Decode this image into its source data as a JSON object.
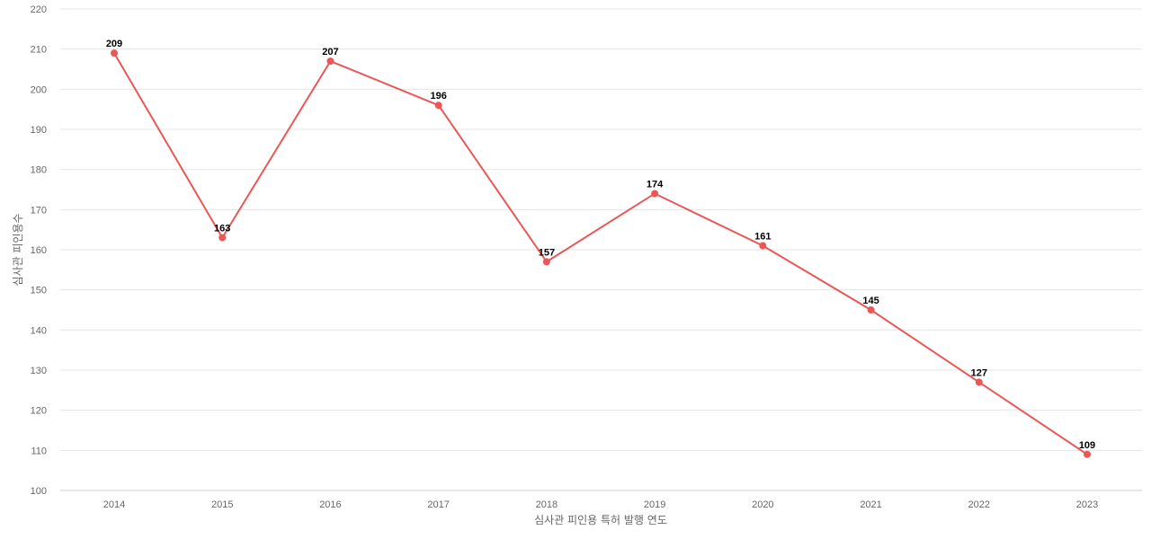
{
  "chart_data": {
    "type": "line",
    "title": "",
    "xlabel": "심사관 피인용 특허 발행 연도",
    "ylabel": "심사관 피인용수",
    "categories": [
      "2014",
      "2015",
      "2016",
      "2017",
      "2018",
      "2019",
      "2020",
      "2021",
      "2022",
      "2023"
    ],
    "series": [
      {
        "values": [
          209,
          163,
          207,
          196,
          157,
          174,
          161,
          145,
          127,
          109
        ]
      }
    ],
    "ylim": [
      100,
      220
    ],
    "yticks": [
      100,
      110,
      120,
      130,
      140,
      150,
      160,
      170,
      180,
      190,
      200,
      210,
      220
    ],
    "grid": true,
    "legend": "none",
    "data_labels": true
  },
  "colors": {
    "series": "#eb5757",
    "grid": "#e5e5e5",
    "tick_text": "#666666",
    "data_label_text": "#000000"
  }
}
